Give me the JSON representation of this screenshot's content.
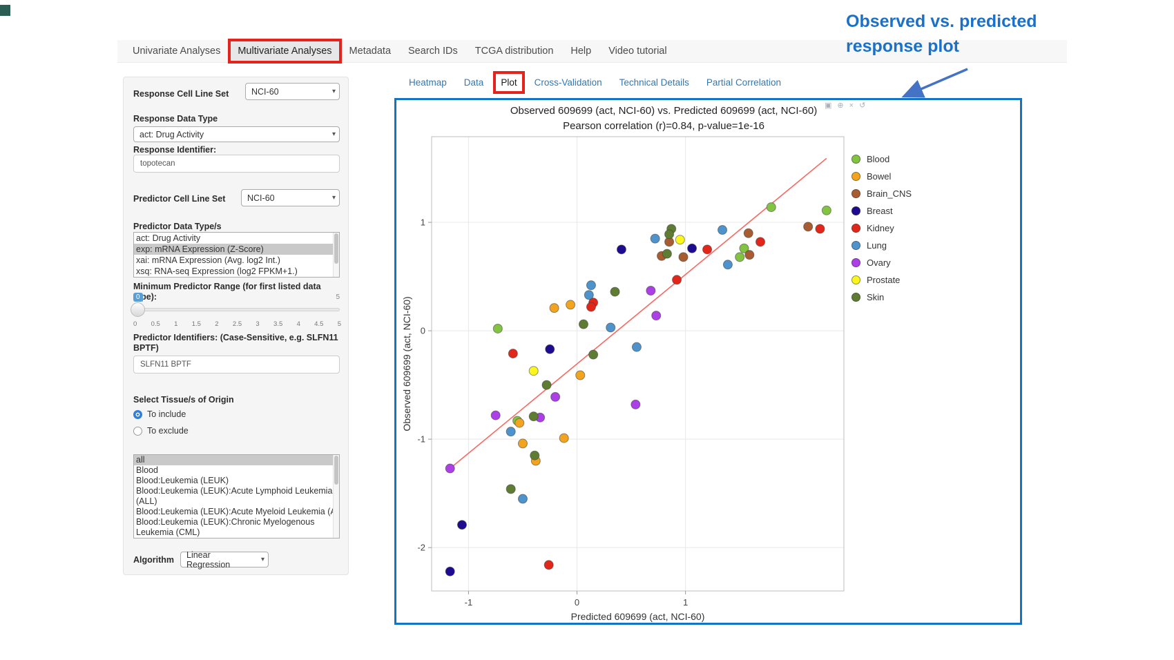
{
  "nav": {
    "items": [
      "Univariate Analyses",
      "Multivariate Analyses",
      "Metadata",
      "Search IDs",
      "TCGA distribution",
      "Help",
      "Video tutorial"
    ],
    "active": "Multivariate Analyses"
  },
  "tabs": {
    "items": [
      "Heatmap",
      "Data",
      "Plot",
      "Cross-Validation",
      "Technical Details",
      "Partial Correlation"
    ],
    "active": "Plot"
  },
  "annotation": {
    "line1": "Observed  vs. predicted",
    "line2": "response plot",
    "text_color": "#1b70c8",
    "arrow_color": "#4472c4"
  },
  "highlight_box_color": "#e3231c",
  "container_border_color": "#1274c4",
  "sidebar": {
    "response_cell_line_set": {
      "label": "Response Cell Line Set",
      "value": "NCI-60"
    },
    "response_data_type": {
      "label": "Response Data Type",
      "value": "act: Drug Activity"
    },
    "response_identifier": {
      "label": "Response Identifier:",
      "value": "topotecan"
    },
    "predictor_cell_line_set": {
      "label": "Predictor Cell Line Set",
      "value": "NCI-60"
    },
    "predictor_data_types": {
      "label": "Predictor Data Type/s",
      "options": [
        {
          "label": "act: Drug Activity",
          "selected": false
        },
        {
          "label": "exp: mRNA Expression (Z-Score)",
          "selected": true
        },
        {
          "label": "xai: mRNA Expression (Avg. log2 Int.)",
          "selected": false
        },
        {
          "label": "xsq: RNA-seq Expression (log2 FPKM+1.)",
          "selected": false
        }
      ]
    },
    "min_predictor_range": {
      "label": "Minimum Predictor Range (for first listed data type):",
      "value": "0",
      "max_label": "5",
      "tick_labels": [
        "0",
        "0.5",
        "1",
        "1.5",
        "2",
        "2.5",
        "3",
        "3.5",
        "4",
        "4.5",
        "5"
      ]
    },
    "predictor_identifiers": {
      "label": "Predictor Identifiers: (Case-Sensitive, e.g. SLFN11 BPTF)",
      "value": "SLFN11 BPTF"
    },
    "tissue_origin": {
      "label": "Select Tissue/s of Origin",
      "radios": [
        {
          "label": "To include",
          "selected": true
        },
        {
          "label": "To exclude",
          "selected": false
        }
      ],
      "options": [
        {
          "label": "all",
          "selected": true,
          "nowrap": false
        },
        {
          "label": "Blood",
          "selected": false,
          "nowrap": false
        },
        {
          "label": "Blood:Leukemia (LEUK)",
          "selected": false,
          "nowrap": false
        },
        {
          "label": "Blood:Leukemia (LEUK):Acute Lymphoid Leukemia (ALL)",
          "selected": false,
          "nowrap": false
        },
        {
          "label": "Blood:Leukemia (LEUK):Acute Myeloid Leukemia (AML)",
          "selected": false,
          "nowrap": true
        },
        {
          "label": "Blood:Leukemia (LEUK):Chronic Myelogenous Leukemia (CML)",
          "selected": false,
          "nowrap": false
        }
      ]
    },
    "algorithm": {
      "label": "Algorithm",
      "value": "Linear Regression"
    }
  },
  "modebar_icons": [
    {
      "name": "camera-icon",
      "glyph": "▣"
    },
    {
      "name": "zoom-icon",
      "glyph": "⊕"
    },
    {
      "name": "pan-icon",
      "glyph": "×"
    },
    {
      "name": "reset-icon",
      "glyph": "↺"
    }
  ],
  "chart_data": {
    "type": "scatter",
    "title": "Observed 609699 (act, NCI-60) vs. Predicted 609699 (act, NCI-60)",
    "subtitle": "Pearson correlation (r)=0.84, p-value=1e-16",
    "xlabel": "Predicted 609699 (act, NCI-60)",
    "ylabel": "Observed 609699 (act, NCI-60)",
    "xlim": [
      -1.34,
      2.46
    ],
    "ylim": [
      -2.4,
      1.79
    ],
    "xticks": [
      -1,
      0,
      1
    ],
    "yticks": [
      1,
      0,
      -1,
      -2
    ],
    "grid": true,
    "legend_position": "right",
    "regression_line": {
      "x": [
        -1.17,
        2.3
      ],
      "y": [
        -1.27,
        1.59
      ],
      "color": "#f66a62"
    },
    "series": [
      {
        "name": "Blood",
        "color": "#82c341",
        "points": [
          [
            -0.73,
            0.02
          ],
          [
            1.79,
            1.14
          ],
          [
            2.3,
            1.11
          ],
          [
            1.54,
            0.76
          ],
          [
            1.5,
            0.68
          ],
          [
            -0.55,
            -0.83
          ]
        ]
      },
      {
        "name": "Bowel",
        "color": "#f2a41f",
        "points": [
          [
            -0.06,
            0.24
          ],
          [
            -0.21,
            0.21
          ],
          [
            0.03,
            -0.41
          ],
          [
            -0.53,
            -0.85
          ],
          [
            -0.12,
            -0.99
          ],
          [
            -0.5,
            -1.04
          ],
          [
            -0.38,
            -1.2
          ]
        ]
      },
      {
        "name": "Brain_CNS",
        "color": "#a85c32",
        "points": [
          [
            0.85,
            0.82
          ],
          [
            0.78,
            0.69
          ],
          [
            0.98,
            0.68
          ],
          [
            1.58,
            0.9
          ],
          [
            2.13,
            0.96
          ],
          [
            1.59,
            0.7
          ]
        ]
      },
      {
        "name": "Breast",
        "color": "#1d0c8f",
        "points": [
          [
            0.41,
            0.75
          ],
          [
            -0.25,
            -0.17
          ],
          [
            1.06,
            0.76
          ],
          [
            -1.06,
            -1.79
          ],
          [
            -1.17,
            -2.22
          ]
        ]
      },
      {
        "name": "Kidney",
        "color": "#e3261a",
        "points": [
          [
            0.15,
            0.26
          ],
          [
            0.13,
            0.22
          ],
          [
            -0.59,
            -0.21
          ],
          [
            1.2,
            0.75
          ],
          [
            1.69,
            0.82
          ],
          [
            2.24,
            0.94
          ],
          [
            0.92,
            0.47
          ],
          [
            -0.26,
            -2.16
          ]
        ]
      },
      {
        "name": "Lung",
        "color": "#4e93cc",
        "points": [
          [
            0.13,
            0.42
          ],
          [
            0.11,
            0.33
          ],
          [
            0.31,
            0.03
          ],
          [
            0.55,
            -0.15
          ],
          [
            0.72,
            0.85
          ],
          [
            1.34,
            0.93
          ],
          [
            1.39,
            0.61
          ],
          [
            -0.61,
            -0.93
          ],
          [
            -0.5,
            -1.55
          ]
        ]
      },
      {
        "name": "Ovary",
        "color": "#ac3fe5",
        "points": [
          [
            0.68,
            0.37
          ],
          [
            0.73,
            0.14
          ],
          [
            -0.2,
            -0.61
          ],
          [
            -0.75,
            -0.78
          ],
          [
            -0.34,
            -0.8
          ],
          [
            -1.17,
            -1.27
          ],
          [
            0.54,
            -0.68
          ]
        ]
      },
      {
        "name": "Prostate",
        "color": "#faf61e",
        "points": [
          [
            0.95,
            0.84
          ],
          [
            -0.4,
            -0.37
          ]
        ]
      },
      {
        "name": "Skin",
        "color": "#5e7d33",
        "points": [
          [
            0.35,
            0.36
          ],
          [
            0.06,
            0.06
          ],
          [
            0.15,
            -0.22
          ],
          [
            0.87,
            0.94
          ],
          [
            0.85,
            0.89
          ],
          [
            0.83,
            0.71
          ],
          [
            -0.28,
            -0.5
          ],
          [
            -0.4,
            -0.79
          ],
          [
            -0.39,
            -1.15
          ],
          [
            -0.61,
            -1.46
          ]
        ]
      }
    ]
  }
}
